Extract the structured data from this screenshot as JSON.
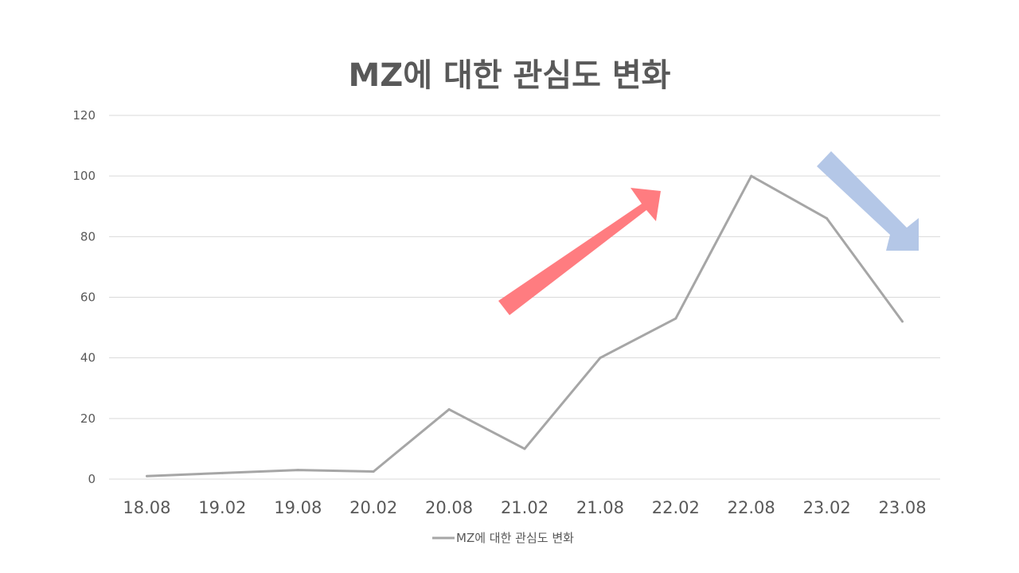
{
  "chart_data": {
    "type": "line",
    "title": "MZ에 대한 관심도 변화",
    "categories": [
      "18.08",
      "19.02",
      "19.08",
      "20.02",
      "20.08",
      "21.02",
      "21.08",
      "22.02",
      "22.08",
      "23.02",
      "23.08"
    ],
    "series": [
      {
        "name": "MZ에 대한 관심도 변화",
        "values": [
          1,
          2,
          3,
          2.5,
          23,
          10,
          40,
          53,
          100,
          86,
          52
        ],
        "color": "#a6a6a6"
      }
    ],
    "ylim": [
      0,
      120
    ],
    "yticks": [
      0,
      20,
      40,
      60,
      80,
      100,
      120
    ],
    "grid": true,
    "legend_position": "bottom",
    "annotations": [
      {
        "kind": "arrow-up-right",
        "color": "#ff7c80"
      },
      {
        "kind": "arrow-down-right",
        "color": "#b4c7e7"
      }
    ]
  }
}
